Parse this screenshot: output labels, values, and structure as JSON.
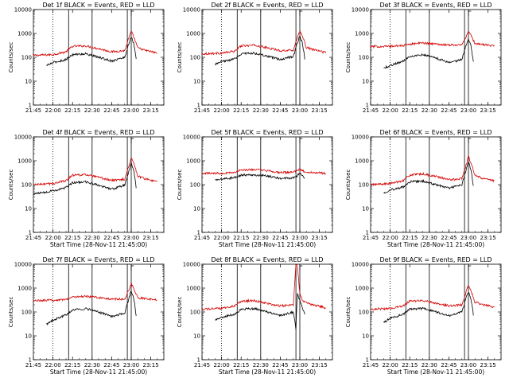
{
  "page": {
    "background": "#ffffff"
  },
  "style": {
    "events_color": "#000000",
    "lld_color": "#d40000"
  },
  "axis": {
    "ylabel": "Counts/sec",
    "xlabel": "Start Time (28-Nov-11 21:45:00)",
    "xticks": [
      "21:45",
      "22:00",
      "22:15",
      "22:30",
      "22:45",
      "23:00",
      "23:15"
    ],
    "xlim": [
      "21:45",
      "23:25"
    ],
    "yticks": [
      "1",
      "10",
      "100",
      "1000",
      "10000"
    ],
    "ylim": [
      1,
      10000
    ],
    "yscale": "log"
  },
  "markers": {
    "dotted_line": "22:00",
    "solid_lines": [
      "22:12",
      "22:30",
      "22:57",
      "23:00"
    ],
    "bracket_lines": [
      "23:00",
      "23:02"
    ]
  },
  "chart_data": [
    {
      "type": "line",
      "title": "Det 1f BLACK = Events, RED = LLD",
      "xlabel": "",
      "ylabel": "Counts/sec",
      "series": [
        {
          "role": "lld",
          "x": [
            "21:45",
            "22:00",
            "22:10",
            "22:15",
            "22:25",
            "22:35",
            "22:45",
            "22:55",
            "22:58",
            "23:00",
            "23:02",
            "23:05",
            "23:10",
            "23:20"
          ],
          "values": [
            120,
            130,
            170,
            290,
            300,
            230,
            170,
            190,
            600,
            1200,
            700,
            250,
            200,
            150
          ]
        },
        {
          "role": "events",
          "x": [
            "21:55",
            "22:00",
            "22:10",
            "22:15",
            "22:25",
            "22:35",
            "22:45",
            "22:55",
            "22:58",
            "23:00",
            "23:02",
            "23:04"
          ],
          "values": [
            45,
            60,
            80,
            130,
            140,
            100,
            70,
            100,
            350,
            750,
            350,
            70
          ]
        }
      ]
    },
    {
      "type": "line",
      "title": "Det 2f BLACK = Events, RED = LLD",
      "xlabel": "",
      "ylabel": "Counts/sec",
      "series": [
        {
          "role": "lld",
          "x": [
            "21:45",
            "22:00",
            "22:10",
            "22:15",
            "22:25",
            "22:35",
            "22:45",
            "22:55",
            "22:58",
            "23:00",
            "23:02",
            "23:05",
            "23:10",
            "23:20"
          ],
          "values": [
            140,
            150,
            180,
            300,
            320,
            250,
            190,
            200,
            650,
            1300,
            750,
            260,
            210,
            160
          ]
        },
        {
          "role": "events",
          "x": [
            "21:55",
            "22:00",
            "22:10",
            "22:15",
            "22:25",
            "22:35",
            "22:45",
            "22:55",
            "22:58",
            "23:00",
            "23:02",
            "23:04"
          ],
          "values": [
            50,
            65,
            85,
            140,
            150,
            110,
            80,
            110,
            380,
            800,
            380,
            75
          ]
        }
      ]
    },
    {
      "type": "line",
      "title": "Det 3f BLACK = Events, RED = LLD",
      "xlabel": "",
      "ylabel": "Counts/sec",
      "series": [
        {
          "role": "lld",
          "x": [
            "21:45",
            "22:00",
            "22:10",
            "22:15",
            "22:25",
            "22:35",
            "22:45",
            "22:55",
            "22:58",
            "23:00",
            "23:02",
            "23:05",
            "23:10",
            "23:20"
          ],
          "values": [
            280,
            290,
            310,
            360,
            400,
            360,
            330,
            330,
            700,
            1300,
            800,
            380,
            350,
            300
          ]
        },
        {
          "role": "events",
          "x": [
            "21:55",
            "22:00",
            "22:10",
            "22:15",
            "22:25",
            "22:35",
            "22:45",
            "22:55",
            "22:58",
            "23:00",
            "23:02",
            "23:04"
          ],
          "values": [
            35,
            45,
            70,
            110,
            130,
            95,
            60,
            80,
            300,
            600,
            300,
            55
          ]
        }
      ]
    },
    {
      "type": "line",
      "title": "Det 4f BLACK = Events, RED = LLD",
      "xlabel": "Start Time (28-Nov-11 21:45:00)",
      "ylabel": "Counts/sec",
      "series": [
        {
          "role": "lld",
          "x": [
            "21:45",
            "22:00",
            "22:10",
            "22:15",
            "22:25",
            "22:35",
            "22:45",
            "22:55",
            "22:58",
            "23:00",
            "23:02",
            "23:05",
            "23:10",
            "23:20"
          ],
          "values": [
            100,
            110,
            150,
            250,
            260,
            200,
            150,
            170,
            550,
            1400,
            800,
            230,
            180,
            130
          ]
        },
        {
          "role": "events",
          "x": [
            "21:45",
            "22:00",
            "22:10",
            "22:15",
            "22:25",
            "22:35",
            "22:45",
            "22:55",
            "22:58",
            "23:00",
            "23:02",
            "23:04"
          ],
          "values": [
            40,
            55,
            75,
            120,
            130,
            95,
            65,
            95,
            330,
            800,
            380,
            65
          ]
        }
      ]
    },
    {
      "type": "line",
      "title": "Det 5f BLACK = Events, RED = LLD",
      "xlabel": "Start Time (28-Nov-11 21:45:00)",
      "ylabel": "Counts/sec",
      "series": [
        {
          "role": "lld",
          "x": [
            "21:45",
            "22:00",
            "22:10",
            "22:15",
            "22:25",
            "22:35",
            "22:45",
            "22:55",
            "22:58",
            "23:00",
            "23:02",
            "23:05",
            "23:10",
            "23:20"
          ],
          "values": [
            300,
            300,
            330,
            400,
            430,
            380,
            320,
            330,
            380,
            450,
            380,
            330,
            320,
            300
          ]
        },
        {
          "role": "events",
          "x": [
            "21:55",
            "22:00",
            "22:10",
            "22:15",
            "22:25",
            "22:35",
            "22:45",
            "22:55",
            "22:58",
            "23:00",
            "23:02",
            "23:04"
          ],
          "values": [
            150,
            170,
            200,
            250,
            260,
            230,
            180,
            190,
            230,
            320,
            230,
            180
          ]
        }
      ]
    },
    {
      "type": "line",
      "title": "Det 6f BLACK = Events, RED = LLD",
      "xlabel": "Start Time (28-Nov-11 21:45:00)",
      "ylabel": "Counts/sec",
      "series": [
        {
          "role": "lld",
          "x": [
            "21:45",
            "22:00",
            "22:10",
            "22:15",
            "22:25",
            "22:35",
            "22:45",
            "22:55",
            "22:58",
            "23:00",
            "23:02",
            "23:05",
            "23:10",
            "23:20"
          ],
          "values": [
            100,
            110,
            150,
            250,
            280,
            220,
            160,
            180,
            600,
            1500,
            800,
            240,
            190,
            140
          ]
        },
        {
          "role": "events",
          "x": [
            "21:55",
            "22:00",
            "22:10",
            "22:15",
            "22:25",
            "22:35",
            "22:45",
            "22:55",
            "22:58",
            "23:00",
            "23:02",
            "23:04"
          ],
          "values": [
            45,
            60,
            80,
            130,
            140,
            100,
            70,
            100,
            360,
            900,
            400,
            70
          ]
        }
      ]
    },
    {
      "type": "line",
      "title": "Det 7f BLACK = Events, RED = LLD",
      "xlabel": "Start Time (28-Nov-11 21:45:00)",
      "ylabel": "Counts/sec",
      "series": [
        {
          "role": "lld",
          "x": [
            "21:45",
            "22:00",
            "22:10",
            "22:15",
            "22:25",
            "22:35",
            "22:45",
            "22:55",
            "22:58",
            "23:00",
            "23:02",
            "23:05",
            "23:10",
            "23:20"
          ],
          "values": [
            300,
            310,
            340,
            420,
            450,
            400,
            340,
            350,
            800,
            1600,
            900,
            400,
            360,
            310
          ]
        },
        {
          "role": "events",
          "x": [
            "21:55",
            "22:00",
            "22:10",
            "22:15",
            "22:25",
            "22:35",
            "22:45",
            "22:55",
            "22:58",
            "23:00",
            "23:02",
            "23:04"
          ],
          "values": [
            30,
            45,
            75,
            120,
            140,
            100,
            65,
            90,
            330,
            800,
            350,
            60
          ]
        }
      ]
    },
    {
      "type": "line",
      "title": "Det 8f BLACK = Events, RED = LLD",
      "xlabel": "Start Time (28-Nov-11 21:45:00)",
      "ylabel": "Counts/sec",
      "series": [
        {
          "role": "lld",
          "x": [
            "21:45",
            "22:00",
            "22:10",
            "22:15",
            "22:25",
            "22:35",
            "22:45",
            "22:55",
            "22:57",
            "22:58",
            "23:00",
            "23:02",
            "23:05",
            "23:10",
            "23:20"
          ],
          "values": [
            130,
            140,
            180,
            280,
            300,
            230,
            180,
            200,
            10000,
            9000,
            600,
            300,
            240,
            200,
            150
          ]
        },
        {
          "role": "events",
          "x": [
            "21:55",
            "22:00",
            "22:10",
            "22:15",
            "22:25",
            "22:35",
            "22:45",
            "22:55",
            "22:57",
            "22:58",
            "23:00",
            "23:02",
            "23:04"
          ],
          "values": [
            45,
            60,
            80,
            130,
            140,
            100,
            70,
            100,
            20,
            600,
            300,
            150,
            70
          ]
        }
      ]
    },
    {
      "type": "line",
      "title": "Det 9f BLACK = Events, RED = LLD",
      "xlabel": "Start Time (28-Nov-11 21:45:00)",
      "ylabel": "Counts/sec",
      "series": [
        {
          "role": "lld",
          "x": [
            "21:45",
            "22:00",
            "22:10",
            "22:15",
            "22:25",
            "22:35",
            "22:45",
            "22:55",
            "22:58",
            "23:00",
            "23:02",
            "23:05",
            "23:10",
            "23:20"
          ],
          "values": [
            130,
            140,
            180,
            280,
            300,
            230,
            180,
            200,
            650,
            1300,
            750,
            260,
            210,
            160
          ]
        },
        {
          "role": "events",
          "x": [
            "21:55",
            "22:00",
            "22:10",
            "22:15",
            "22:25",
            "22:35",
            "22:45",
            "22:55",
            "22:58",
            "23:00",
            "23:02",
            "23:04"
          ],
          "values": [
            35,
            55,
            80,
            130,
            140,
            100,
            70,
            100,
            360,
            750,
            350,
            65
          ]
        }
      ]
    }
  ]
}
